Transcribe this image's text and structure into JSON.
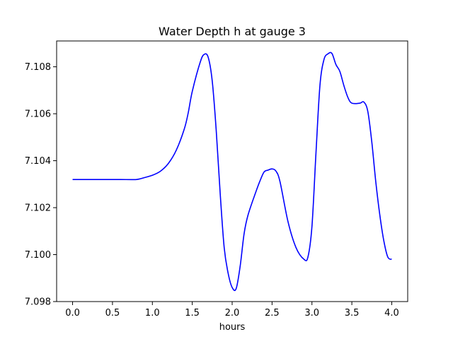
{
  "chart_data": {
    "type": "line",
    "title": "Water Depth h at gauge 3",
    "xlabel": "hours",
    "ylabel": "",
    "xlim": [
      -0.2,
      4.2
    ],
    "ylim": [
      7.098,
      7.1091
    ],
    "x_ticks": [
      0.0,
      0.5,
      1.0,
      1.5,
      2.0,
      2.5,
      3.0,
      3.5,
      4.0
    ],
    "x_tick_labels": [
      "0.0",
      "0.5",
      "1.0",
      "1.5",
      "2.0",
      "2.5",
      "3.0",
      "3.5",
      "4.0"
    ],
    "y_ticks": [
      7.098,
      7.1,
      7.102,
      7.104,
      7.106,
      7.108
    ],
    "y_tick_labels": [
      "7.098",
      "7.100",
      "7.102",
      "7.104",
      "7.106",
      "7.108"
    ],
    "grid": false,
    "legend": "none",
    "series": [
      {
        "color": "#0000ff",
        "x": [
          0.0,
          0.2,
          0.4,
          0.6,
          0.8,
          0.9,
          1.0,
          1.1,
          1.2,
          1.3,
          1.4,
          1.45,
          1.5,
          1.6,
          1.65,
          1.7,
          1.75,
          1.8,
          1.85,
          1.9,
          1.95,
          2.0,
          2.05,
          2.1,
          2.15,
          2.2,
          2.3,
          2.35,
          2.4,
          2.45,
          2.5,
          2.55,
          2.6,
          2.7,
          2.8,
          2.9,
          2.95,
          3.0,
          3.05,
          3.1,
          3.15,
          3.2,
          3.25,
          3.3,
          3.35,
          3.4,
          3.45,
          3.5,
          3.6,
          3.65,
          3.7,
          3.75,
          3.8,
          3.85,
          3.9,
          3.95,
          4.0
        ],
        "y": [
          7.1032,
          7.1032,
          7.1032,
          7.1032,
          7.1032,
          7.10328,
          7.10338,
          7.10355,
          7.10388,
          7.10445,
          7.10535,
          7.10605,
          7.10695,
          7.1082,
          7.10853,
          7.1084,
          7.1074,
          7.1053,
          7.1026,
          7.1003,
          7.0992,
          7.0986,
          7.09855,
          7.0995,
          7.1009,
          7.1017,
          7.1027,
          7.10315,
          7.10352,
          7.1036,
          7.10365,
          7.10355,
          7.1031,
          7.1014,
          7.1003,
          7.0998,
          7.0999,
          7.1012,
          7.1043,
          7.1072,
          7.1083,
          7.10855,
          7.10857,
          7.1081,
          7.1078,
          7.1072,
          7.1067,
          7.10645,
          7.10645,
          7.1065,
          7.1061,
          7.1048,
          7.1031,
          7.1017,
          7.1006,
          7.0999,
          7.0998
        ]
      }
    ]
  }
}
